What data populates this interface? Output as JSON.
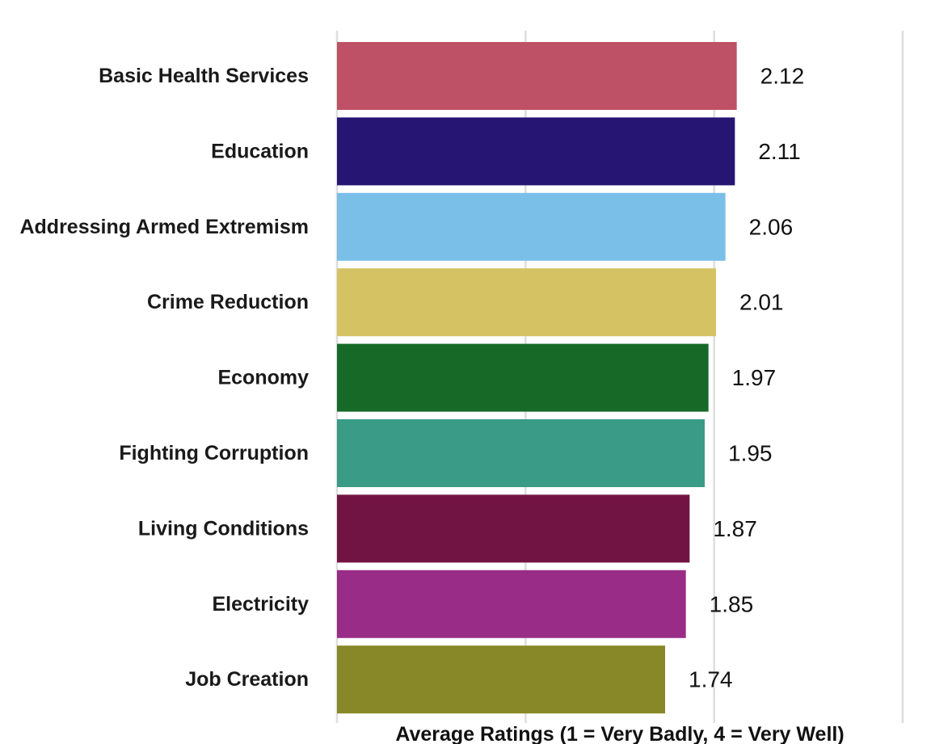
{
  "chart_data": {
    "type": "bar",
    "orientation": "horizontal",
    "categories": [
      "Basic Health Services",
      "Education",
      "Addressing Armed Extremism",
      "Crime Reduction",
      "Economy",
      "Fighting Corruption",
      "Living Conditions",
      "Electricity",
      "Job Creation"
    ],
    "values": [
      2.12,
      2.11,
      2.06,
      2.01,
      1.97,
      1.95,
      1.87,
      1.85,
      1.74
    ],
    "value_labels": [
      "2.12",
      "2.11",
      "2.06",
      "2.01",
      "1.97",
      "1.95",
      "1.87",
      "1.85",
      "1.74"
    ],
    "colors": [
      "#be5165",
      "#271574",
      "#79bfe8",
      "#d5c363",
      "#166927",
      "#3a9b87",
      "#721443",
      "#992c87",
      "#888828"
    ],
    "xlabel": "Average Ratings (1 = Very Badly, 4 = Very Well)",
    "ylabel": "",
    "title": "",
    "xlim": [
      0,
      3
    ],
    "grid": true,
    "legend": "none"
  }
}
